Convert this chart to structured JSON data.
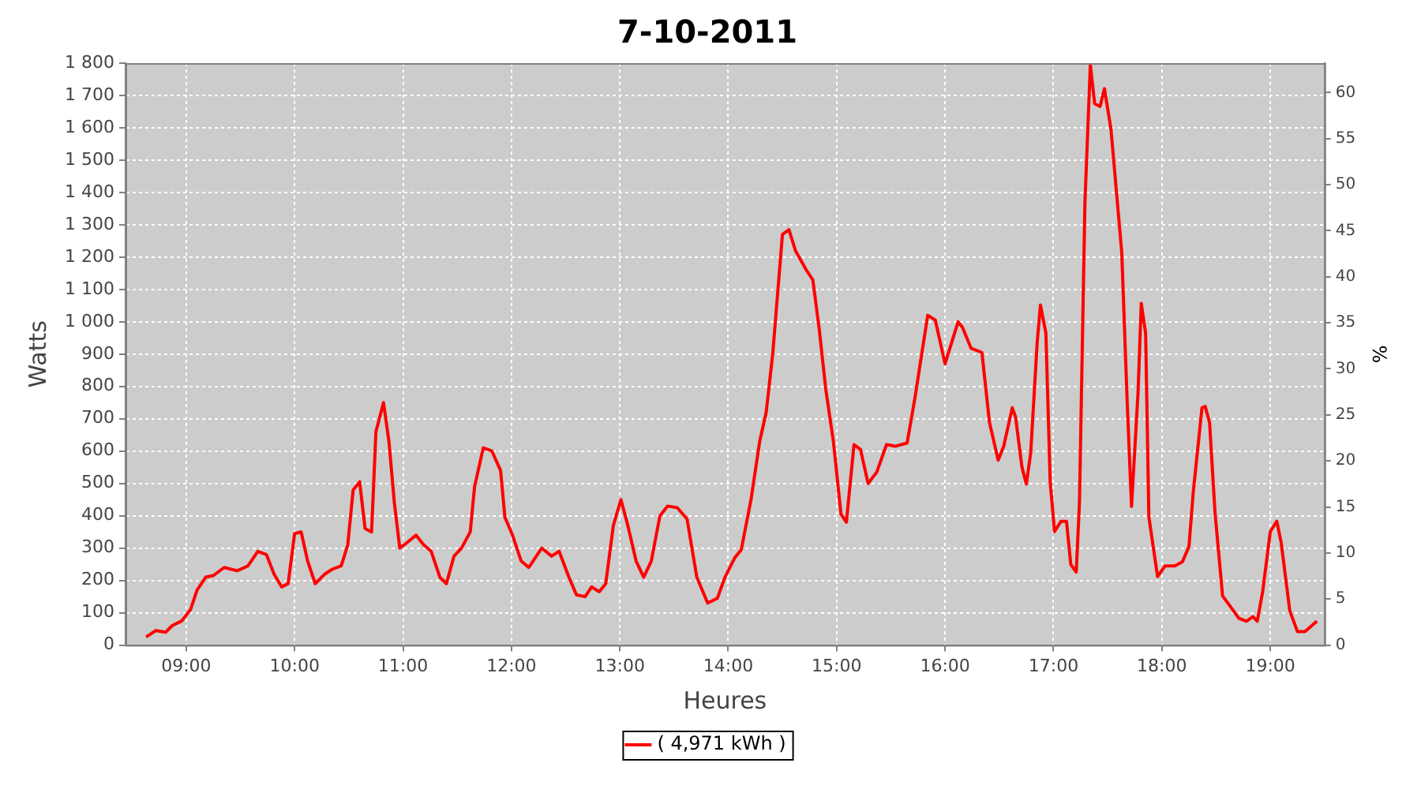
{
  "chart_data": {
    "type": "line",
    "title": "7-10-2011",
    "xlabel": "Heures",
    "ylabel": "Watts",
    "y2label": "%",
    "xlim": [
      8.44,
      19.5
    ],
    "xticks": [
      {
        "value": 9,
        "label": "09:00"
      },
      {
        "value": 10,
        "label": "10:00"
      },
      {
        "value": 11,
        "label": "11:00"
      },
      {
        "value": 12,
        "label": "12:00"
      },
      {
        "value": 13,
        "label": "13:00"
      },
      {
        "value": 14,
        "label": "14:00"
      },
      {
        "value": 15,
        "label": "15:00"
      },
      {
        "value": 16,
        "label": "16:00"
      },
      {
        "value": 17,
        "label": "17:00"
      },
      {
        "value": 18,
        "label": "18:00"
      },
      {
        "value": 19,
        "label": "19:00"
      }
    ],
    "ylim": [
      0,
      1800
    ],
    "yticks": [
      0,
      100,
      200,
      300,
      400,
      500,
      600,
      700,
      800,
      900,
      {
        "value": 1000,
        "label": "1 000"
      },
      {
        "value": 1100,
        "label": "1 100"
      },
      {
        "value": 1200,
        "label": "1 200"
      },
      {
        "value": 1300,
        "label": "1 300"
      },
      {
        "value": 1400,
        "label": "1 400"
      },
      {
        "value": 1500,
        "label": "1 500"
      },
      {
        "value": 1600,
        "label": "1 600"
      },
      {
        "value": 1700,
        "label": "1 700"
      },
      {
        "value": 1800,
        "label": "1 800"
      }
    ],
    "y2lim": [
      0,
      63.2
    ],
    "y2ticks": [
      0,
      5,
      10,
      15,
      20,
      25,
      30,
      35,
      40,
      45,
      50,
      55,
      60
    ],
    "grid": true,
    "legend": "bottom",
    "marker": "none",
    "line_style": "solid",
    "x": [
      8.63,
      8.72,
      8.81,
      8.87,
      8.96,
      9.04,
      9.1,
      9.18,
      9.25,
      9.35,
      9.47,
      9.57,
      9.66,
      9.74,
      9.81,
      9.88,
      9.94,
      10.0,
      10.06,
      10.12,
      10.19,
      10.28,
      10.35,
      10.43,
      10.49,
      10.54,
      10.6,
      10.65,
      10.71,
      10.75,
      10.82,
      10.87,
      10.92,
      10.97,
      11.03,
      11.12,
      11.19,
      11.26,
      11.34,
      11.4,
      11.47,
      11.54,
      11.62,
      11.66,
      11.74,
      11.82,
      11.9,
      11.94,
      12.01,
      12.09,
      12.16,
      12.22,
      12.28,
      12.37,
      12.44,
      12.53,
      12.6,
      12.68,
      12.74,
      12.81,
      12.87,
      12.94,
      13.01,
      13.07,
      13.15,
      13.22,
      13.29,
      13.37,
      13.44,
      13.53,
      13.62,
      13.71,
      13.81,
      13.9,
      13.97,
      14.06,
      14.12,
      14.21,
      14.29,
      14.35,
      14.41,
      14.5,
      14.56,
      14.62,
      14.72,
      14.78,
      14.84,
      14.9,
      14.97,
      15.04,
      15.09,
      15.16,
      15.22,
      15.29,
      15.37,
      15.46,
      15.54,
      15.65,
      15.72,
      15.84,
      15.91,
      16.0,
      16.12,
      16.16,
      16.24,
      16.34,
      16.41,
      16.49,
      16.54,
      16.62,
      16.65,
      16.71,
      16.75,
      16.79,
      16.85,
      16.88,
      16.93,
      16.97,
      17.01,
      17.07,
      17.12,
      17.16,
      17.21,
      17.24,
      17.29,
      17.34,
      17.38,
      17.43,
      17.47,
      17.53,
      17.63,
      17.68,
      17.72,
      17.78,
      17.81,
      17.85,
      17.88,
      17.96,
      18.03,
      18.12,
      18.19,
      18.25,
      18.29,
      18.37,
      18.4,
      18.44,
      18.49,
      18.56,
      18.63,
      18.71,
      18.78,
      18.84,
      18.88,
      18.93,
      19.0,
      19.06,
      19.1,
      19.18,
      19.25,
      19.32,
      19.43
    ],
    "series": [
      {
        "name": "( 4,971 kWh )",
        "color": "#ff0000",
        "values": [
          25,
          45,
          40,
          60,
          75,
          110,
          170,
          210,
          215,
          240,
          230,
          245,
          290,
          280,
          220,
          180,
          190,
          345,
          350,
          260,
          190,
          220,
          235,
          245,
          310,
          480,
          505,
          360,
          350,
          660,
          750,
          630,
          440,
          300,
          315,
          340,
          310,
          290,
          210,
          190,
          275,
          300,
          350,
          490,
          610,
          600,
          540,
          395,
          340,
          260,
          240,
          270,
          300,
          275,
          290,
          210,
          155,
          150,
          180,
          165,
          190,
          370,
          450,
          375,
          260,
          210,
          260,
          400,
          430,
          425,
          390,
          210,
          130,
          145,
          210,
          270,
          295,
          450,
          630,
          720,
          900,
          1270,
          1285,
          1220,
          1160,
          1130,
          975,
          790,
          630,
          405,
          380,
          620,
          605,
          500,
          535,
          620,
          615,
          625,
          760,
          1020,
          1005,
          870,
          1000,
          983,
          918,
          905,
          688,
          572,
          614,
          734,
          706,
          549,
          498,
          595,
          937,
          1052,
          965,
          503,
          351,
          383,
          383,
          249,
          226,
          443,
          1366,
          1795,
          1675,
          1666,
          1721,
          1597,
          1214,
          752,
          429,
          780,
          1057,
          965,
          397,
          212,
          245,
          245,
          258,
          305,
          475,
          734,
          738,
          688,
          411,
          152,
          120,
          83,
          74,
          88,
          74,
          166,
          351,
          383,
          318,
          106,
          42,
          42,
          74
        ]
      }
    ]
  }
}
